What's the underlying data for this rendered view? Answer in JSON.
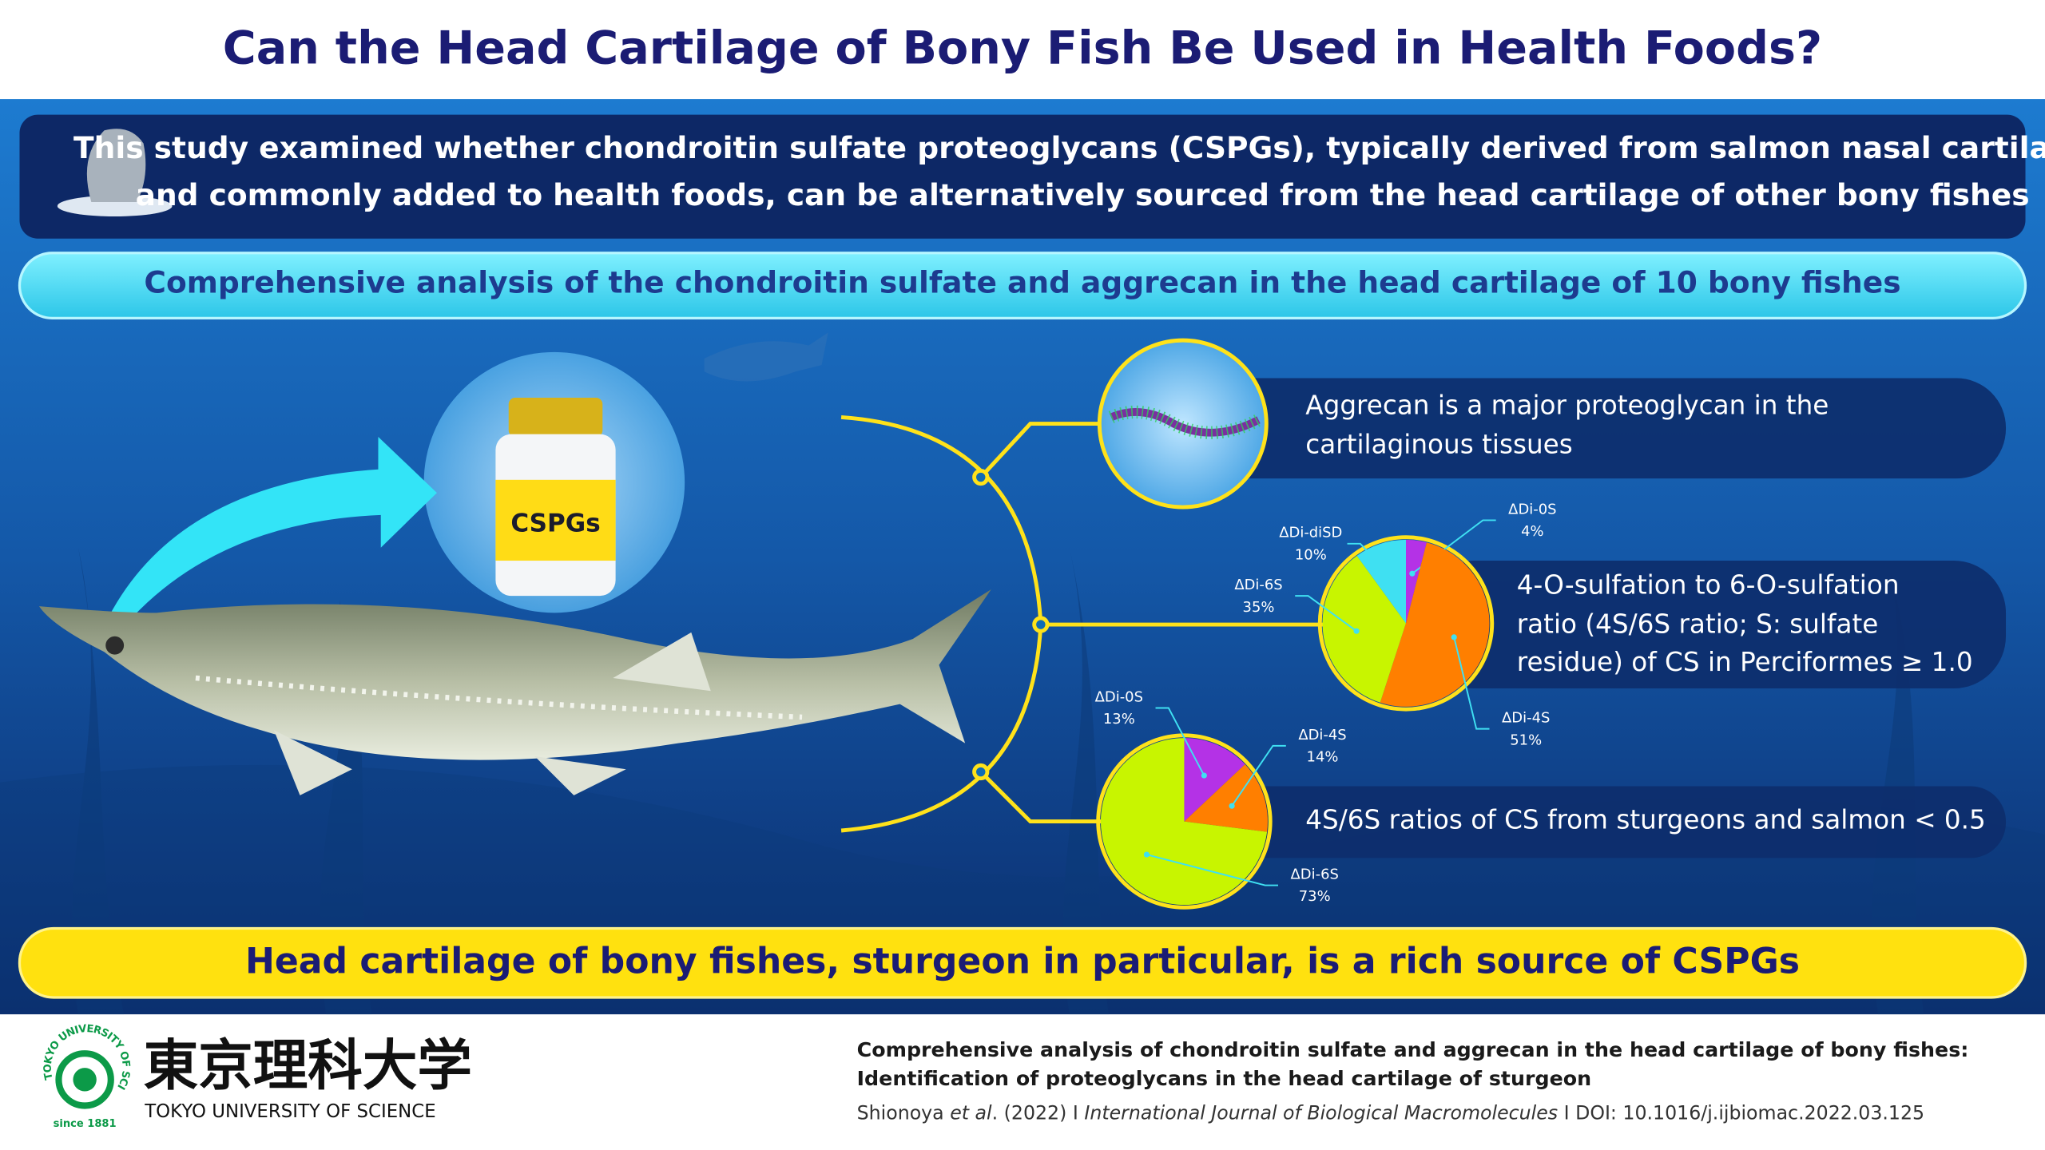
{
  "header": {
    "title": "Can the Head Cartilage of Bony Fish Be Used in Health Foods?"
  },
  "summary": {
    "lines": [
      "This study examined whether chondroitin sulfate proteoglycans (CSPGs), typically derived from salmon nasal cartilage",
      "and commonly added to health foods, can be alternatively sourced from the head cartilage of other bony fishes"
    ]
  },
  "analysis": {
    "title": "Comprehensive analysis of the chondroitin sulfate and aggrecan in the head cartilage of 10 bony fishes"
  },
  "bottle": {
    "label": "CSPGs"
  },
  "findings": [
    {
      "lines": [
        "Aggrecan is a major proteoglycan in the",
        "cartilaginous tissues"
      ]
    },
    {
      "lines": [
        "4-O-sulfation to 6-O-sulfation",
        "ratio (4S/6S ratio; S: sulfate",
        "residue) of CS in Perciformes ≥ 1.0"
      ]
    },
    {
      "lines": [
        "4S/6S ratios of CS from sturgeons and salmon < 0.5"
      ]
    }
  ],
  "conclusion": {
    "text": "Head cartilage of bony fishes, sturgeon in particular, is a rich source of CSPGs"
  },
  "footer": {
    "logo": {
      "ring": "TOKYO UNIVERSITY OF SCIENCE",
      "since": "since 1881",
      "name_ja": "東京理科大学",
      "name_en": "TOKYO UNIVERSITY OF SCIENCE"
    },
    "citation": {
      "title_lines": [
        "Comprehensive analysis of chondroitin sulfate and aggrecan in the head cartilage of bony fishes:",
        "Identification of proteoglycans in the head cartilage of sturgeon"
      ],
      "author": "Shionoya",
      "etal": "et al",
      "year": ". (2022)",
      "separator": "I",
      "journal": "International Journal of Biological Macromolecules",
      "doi": "DOI: 10.1016/j.ijbiomac.2022.03.125"
    }
  },
  "chart_data": [
    {
      "type": "pie",
      "categories": [
        "ΔDi-0S",
        "ΔDi-4S",
        "ΔDi-6S",
        "ΔDi-diSD"
      ],
      "values": [
        4,
        51,
        35,
        10
      ],
      "value_labels": [
        "4%",
        "51%",
        "35%",
        "10%"
      ],
      "colors": [
        "#b432e6",
        "#ff7f00",
        "#c8f500",
        "#3fe0f2"
      ]
    },
    {
      "type": "pie",
      "categories": [
        "ΔDi-0S",
        "ΔDi-4S",
        "ΔDi-6S"
      ],
      "values": [
        13,
        14,
        73
      ],
      "value_labels": [
        "13%",
        "14%",
        "73%"
      ],
      "colors": [
        "#b432e6",
        "#ff7f00",
        "#c8f500"
      ]
    }
  ]
}
